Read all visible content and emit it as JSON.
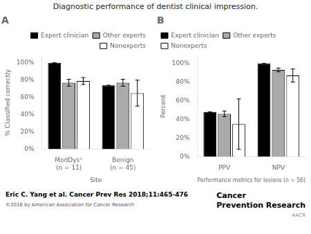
{
  "title": "Diagnostic performance of dentist clinical impression.",
  "annotations": [
    "Eric C. Yang et al. Cancer Prev Res 2018;11:465-476",
    "©2018 by American Association for Cancer Research",
    "Cancer\nPrevention Research",
    "AACR"
  ],
  "chart_data": [
    {
      "type": "bar",
      "title": "A",
      "xlabel": "Site",
      "ylabel": "% Classified correctly",
      "categories": [
        "ModDys⁺\n(n = 11)",
        "Benign\n(n = 45)"
      ],
      "series": [
        {
          "name": "Expert clinician",
          "color": "#000000",
          "values": [
            1.0,
            0.74
          ],
          "errors": [
            0.0,
            0.0
          ]
        },
        {
          "name": "Other experts",
          "color": "#aaaaaa",
          "values": [
            0.77,
            0.77
          ],
          "errors": [
            0.04,
            0.04
          ]
        },
        {
          "name": "Nonexperts",
          "color": "#ffffff",
          "values": [
            0.79,
            0.65
          ],
          "errors": [
            0.04,
            0.15
          ]
        }
      ],
      "ylim": [
        0,
        1.08
      ],
      "yticks": [
        {
          "value": 0,
          "label": "0%"
        },
        {
          "value": 0.2,
          "label": "20%"
        },
        {
          "value": 0.4,
          "label": "40%"
        },
        {
          "value": 0.6,
          "label": "60%"
        },
        {
          "value": 0.8,
          "label": "80%"
        },
        {
          "value": 1.0,
          "label": "100%"
        }
      ],
      "grid": false,
      "legend": "upper right"
    },
    {
      "type": "bar",
      "title": "B",
      "xlabel": "Performance metrics for lesions (n = 56)",
      "ylabel": "Percent",
      "categories": [
        "PPV",
        "NPV"
      ],
      "series": [
        {
          "name": "Expert clinician",
          "color": "#000000",
          "values": [
            0.48,
            1.0
          ],
          "errors": [
            0.0,
            0.0
          ]
        },
        {
          "name": "Other experts",
          "color": "#aaaaaa",
          "values": [
            0.46,
            0.93
          ],
          "errors": [
            0.03,
            0.02
          ]
        },
        {
          "name": "Nonexperts",
          "color": "#ffffff",
          "values": [
            0.35,
            0.87
          ],
          "errors": [
            0.27,
            0.07
          ]
        }
      ],
      "ylim": [
        0,
        1.08
      ],
      "yticks": [
        {
          "value": 0,
          "label": "0%"
        },
        {
          "value": 0.2,
          "label": "20%"
        },
        {
          "value": 0.4,
          "label": "40%"
        },
        {
          "value": 0.6,
          "label": "60%"
        },
        {
          "value": 0.8,
          "label": "80%"
        },
        {
          "value": 1.0,
          "label": "100%"
        }
      ],
      "grid": false,
      "legend": "upper left"
    }
  ]
}
